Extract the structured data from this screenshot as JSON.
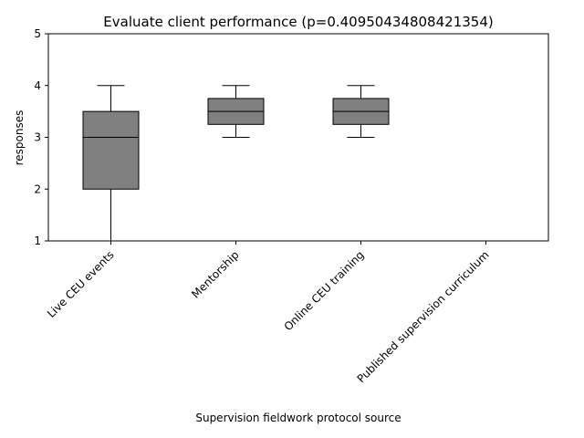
{
  "chart_data": {
    "type": "box",
    "title": "Evaluate client performance (p=0.40950434808421354)",
    "xlabel": "Supervision fieldwork protocol source",
    "ylabel": "responses",
    "ylim": [
      1,
      5
    ],
    "yticks": [
      1,
      2,
      3,
      4,
      5
    ],
    "grid": false,
    "box_color": "#808080",
    "categories": [
      "Live CEU events",
      "Mentorship",
      "Online CEU training",
      "Published supervision curriculum"
    ],
    "boxes": [
      {
        "category": "Live CEU events",
        "whisker_low": 1,
        "q1": 2,
        "median": 3,
        "q3": 3.5,
        "whisker_high": 4
      },
      {
        "category": "Mentorship",
        "whisker_low": 3,
        "q1": 3.25,
        "median": 3.5,
        "q3": 3.75,
        "whisker_high": 4
      },
      {
        "category": "Online CEU training",
        "whisker_low": 3,
        "q1": 3.25,
        "median": 3.5,
        "q3": 3.75,
        "whisker_high": 4
      },
      {
        "category": "Published supervision curriculum",
        "whisker_low": 1,
        "q1": 1,
        "median": 1,
        "q3": 1,
        "whisker_high": 1
      }
    ]
  }
}
